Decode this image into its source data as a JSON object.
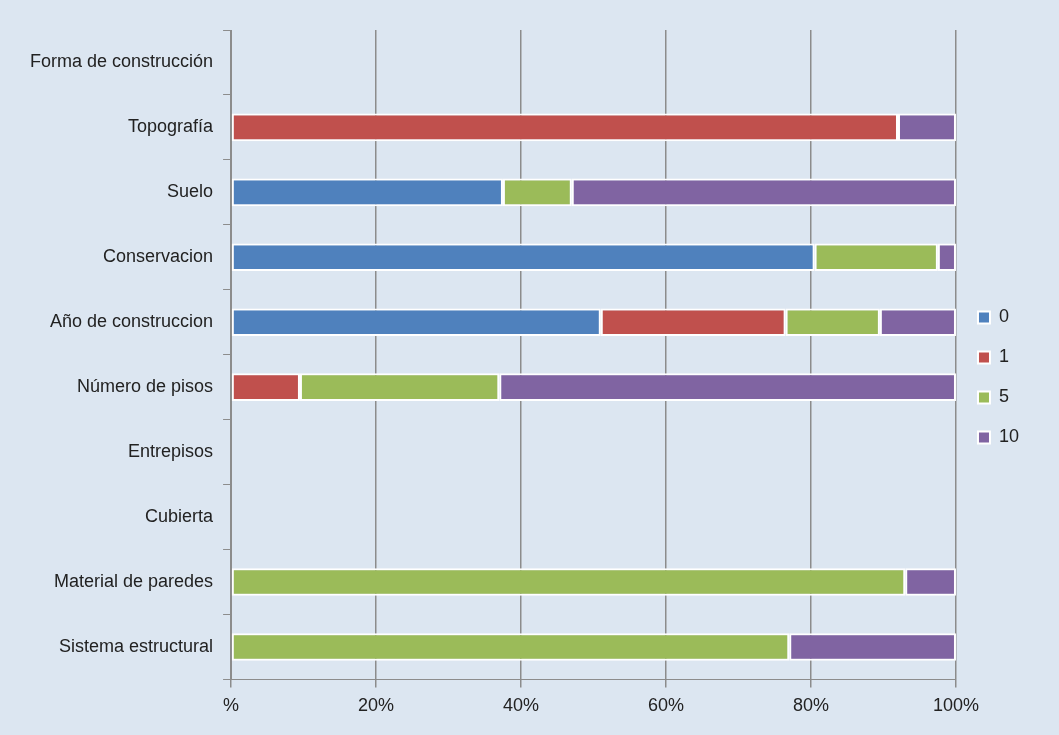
{
  "chart_data": {
    "type": "bar",
    "orientation": "horizontal",
    "stacked": true,
    "categories": [
      "Forma de construcción",
      "Topografía",
      "Suelo",
      "Conservacion",
      "Año de construccion",
      "Número de pisos",
      "Entrepisos",
      "Cubierta",
      "Material de paredes",
      "Sistema estructural"
    ],
    "series": [
      {
        "name": "0",
        "color": "#4f81bd",
        "values": [
          null,
          null,
          37.5,
          80.5,
          51,
          null,
          null,
          null,
          null,
          null
        ]
      },
      {
        "name": "1",
        "color": "#c0504d",
        "values": [
          null,
          92,
          null,
          null,
          25.5,
          9.5,
          null,
          null,
          null,
          null
        ]
      },
      {
        "name": "5",
        "color": "#9bbb59",
        "values": [
          null,
          null,
          9.5,
          17,
          13,
          27.5,
          null,
          null,
          93,
          77
        ]
      },
      {
        "name": "10",
        "color": "#8064a2",
        "values": [
          null,
          8,
          53,
          2.5,
          10.5,
          63,
          null,
          null,
          7,
          23
        ]
      }
    ],
    "xlim": [
      0,
      100
    ],
    "xticks": [
      {
        "value": 0,
        "label": "%"
      },
      {
        "value": 20,
        "label": "20%"
      },
      {
        "value": 40,
        "label": "40%"
      },
      {
        "value": 60,
        "label": "60%"
      },
      {
        "value": 80,
        "label": "80%"
      },
      {
        "value": 100,
        "label": "100%"
      }
    ],
    "grid": "x",
    "legend": "right"
  }
}
